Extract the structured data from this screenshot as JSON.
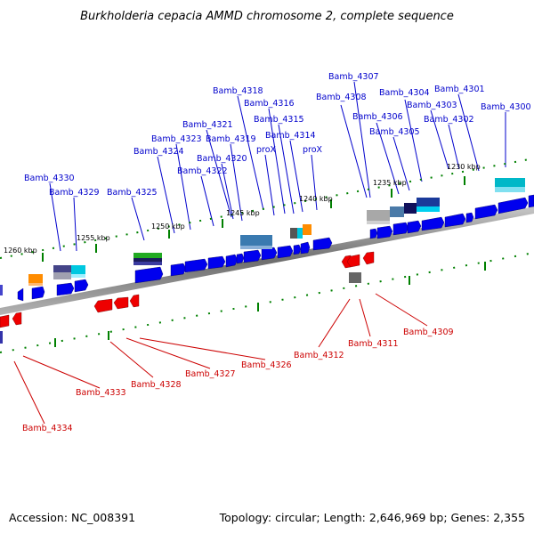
{
  "title": "Burkholderia cepacia AMMD chromosome 2, complete sequence",
  "footer": {
    "accession": "Accession: NC_008391",
    "summary": "Topology: circular; Length: 2,646,969 bp; Genes: 2,355"
  },
  "ticks": [
    "1260 kbp",
    "1255 kbp",
    "1250 kbp",
    "1245 kbp",
    "1240 kbp",
    "1235 kbp",
    "1230 kbp"
  ],
  "genes_top": [
    "Bamb_4307",
    "Bamb_4318",
    "Bamb_4308",
    "Bamb_4304",
    "Bamb_4301",
    "Bamb_4316",
    "Bamb_4303",
    "Bamb_4300",
    "Bamb_4306",
    "Bamb_4321",
    "Bamb_4315",
    "Bamb_4302",
    "Bamb_4305",
    "Bamb_4323",
    "Bamb_4319",
    "Bamb_4314",
    "Bamb_4324",
    "proX",
    "proX",
    "Bamb_4320",
    "Bamb_4322",
    "Bamb_4330",
    "Bamb_4329",
    "Bamb_4325"
  ],
  "genes_bottom": [
    "Bamb_4309",
    "Bamb_4311",
    "Bamb_4312",
    "Bamb_4326",
    "Bamb_4327",
    "Bamb_4328",
    "Bamb_4333",
    "Bamb_4334"
  ],
  "colors": {
    "forward_gene": "#0000ee",
    "reverse_gene": "#ee0000",
    "label_top": "#0000cc",
    "label_bottom": "#cc0000",
    "backbone": "#808080",
    "ticks": "#008000"
  }
}
